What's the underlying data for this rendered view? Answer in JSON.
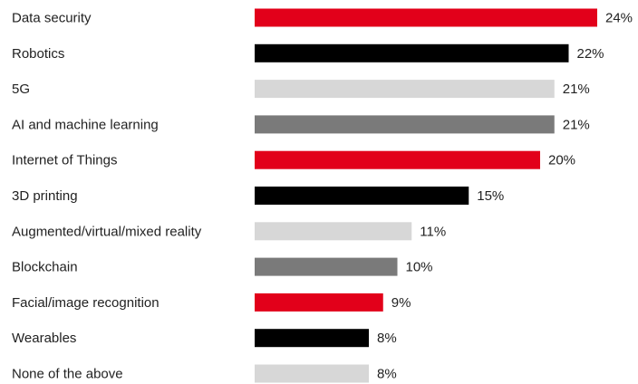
{
  "chart_data": {
    "type": "bar",
    "orientation": "horizontal",
    "title": "",
    "xlabel": "",
    "ylabel": "",
    "xlim": [
      0,
      24
    ],
    "grid": false,
    "legend": "none",
    "value_suffix": "%",
    "categories": [
      "Data security",
      "Robotics",
      "5G",
      "AI and machine learning",
      "Internet of Things",
      "3D printing",
      "Augmented/virtual/mixed reality",
      "Blockchain",
      "Facial/image recognition",
      "Wearables",
      "None of the above"
    ],
    "values": [
      24,
      22,
      21,
      21,
      20,
      15,
      11,
      10,
      9,
      8,
      8
    ],
    "value_labels": [
      "24%",
      "22%",
      "21%",
      "21%",
      "20%",
      "15%",
      "11%",
      "10%",
      "9%",
      "8%",
      "8%"
    ],
    "bar_colors": [
      "#e2001a",
      "#000000",
      "#d7d7d7",
      "#7a7a7a",
      "#e2001a",
      "#000000",
      "#d7d7d7",
      "#7a7a7a",
      "#e2001a",
      "#000000",
      "#d7d7d7"
    ]
  }
}
